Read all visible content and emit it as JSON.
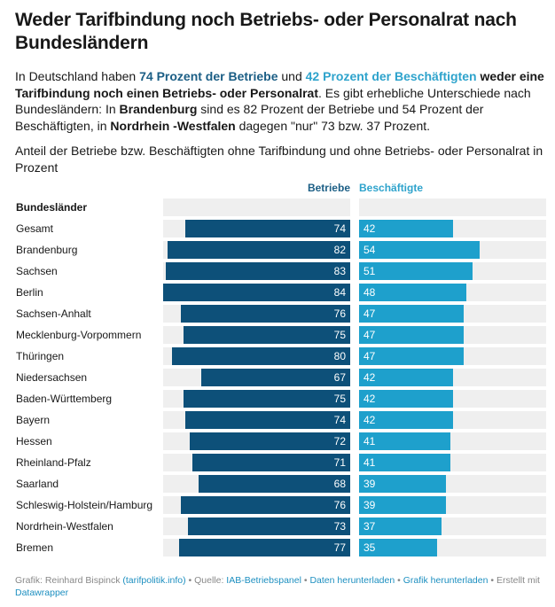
{
  "header": {
    "title": "Weder Tarifbindung noch Betriebs- oder Personalrat nach Bundesländern",
    "intro": {
      "p1": "In Deutschland haben ",
      "hl_betriebe": "74 Prozent der Betriebe",
      "p2": " und ",
      "hl_beschaeftigte": "42 Prozent der Beschäftigten",
      "p3": " ",
      "bold1": "weder eine Tarifbindung noch einen Betriebs- oder Personalrat",
      "p4": ". Es gibt erhebliche Unterschiede nach Bundesländern: In ",
      "bold2": "Brandenburg",
      "p5": " sind es 82 Prozent der Betriebe und 54 Prozent der Beschäftigten, in ",
      "bold3": "Nordrhein -Westfalen",
      "p6": " dagegen \"nur\" 73 bzw. 37 Prozent."
    },
    "subtitle": "Anteil der Betriebe bzw. Beschäftigten ohne Tarifbindung und ohne Betriebs- oder Personalrat in Prozent"
  },
  "colors": {
    "betriebe": "#0d5079",
    "beschaeftigte": "#1ea0cc",
    "background_bar": "#efefef"
  },
  "chart_data": {
    "type": "bar",
    "orientation": "horizontal",
    "title": "Weder Tarifbindung noch Betriebs- oder Personalrat nach Bundesländern",
    "row_header": "Bundesländer",
    "xlim": [
      0,
      84
    ],
    "categories": [
      "Gesamt",
      "Brandenburg",
      "Sachsen",
      "Berlin",
      "Sachsen-Anhalt",
      "Mecklenburg-Vorpommern",
      "Thüringen",
      "Niedersachsen",
      "Baden-Württemberg",
      "Bayern",
      "Hessen",
      "Rheinland-Pfalz",
      "Saarland",
      "Schleswig-Holstein/Hamburg",
      "Nordrhein-Westfalen",
      "Bremen"
    ],
    "series": [
      {
        "name": "Betriebe",
        "values": [
          74,
          82,
          83,
          84,
          76,
          75,
          80,
          67,
          75,
          74,
          72,
          71,
          68,
          76,
          73,
          77
        ]
      },
      {
        "name": "Beschäftigte",
        "values": [
          42,
          54,
          51,
          48,
          47,
          47,
          47,
          42,
          42,
          42,
          41,
          41,
          39,
          39,
          37,
          35
        ]
      }
    ]
  },
  "footer": {
    "grafik_label": "Grafik: Reinhard Bispinck ",
    "grafik_link": "(tarifpolitik.info)",
    "sep1": " • Quelle: ",
    "source_link": "IAB-Betriebspanel",
    "sep2": " • ",
    "data_link": "Daten herunterladen",
    "sep3": " • ",
    "image_link": "Grafik herunterladen",
    "sep4": " • Erstellt mit ",
    "dw_link": "Datawrapper"
  }
}
